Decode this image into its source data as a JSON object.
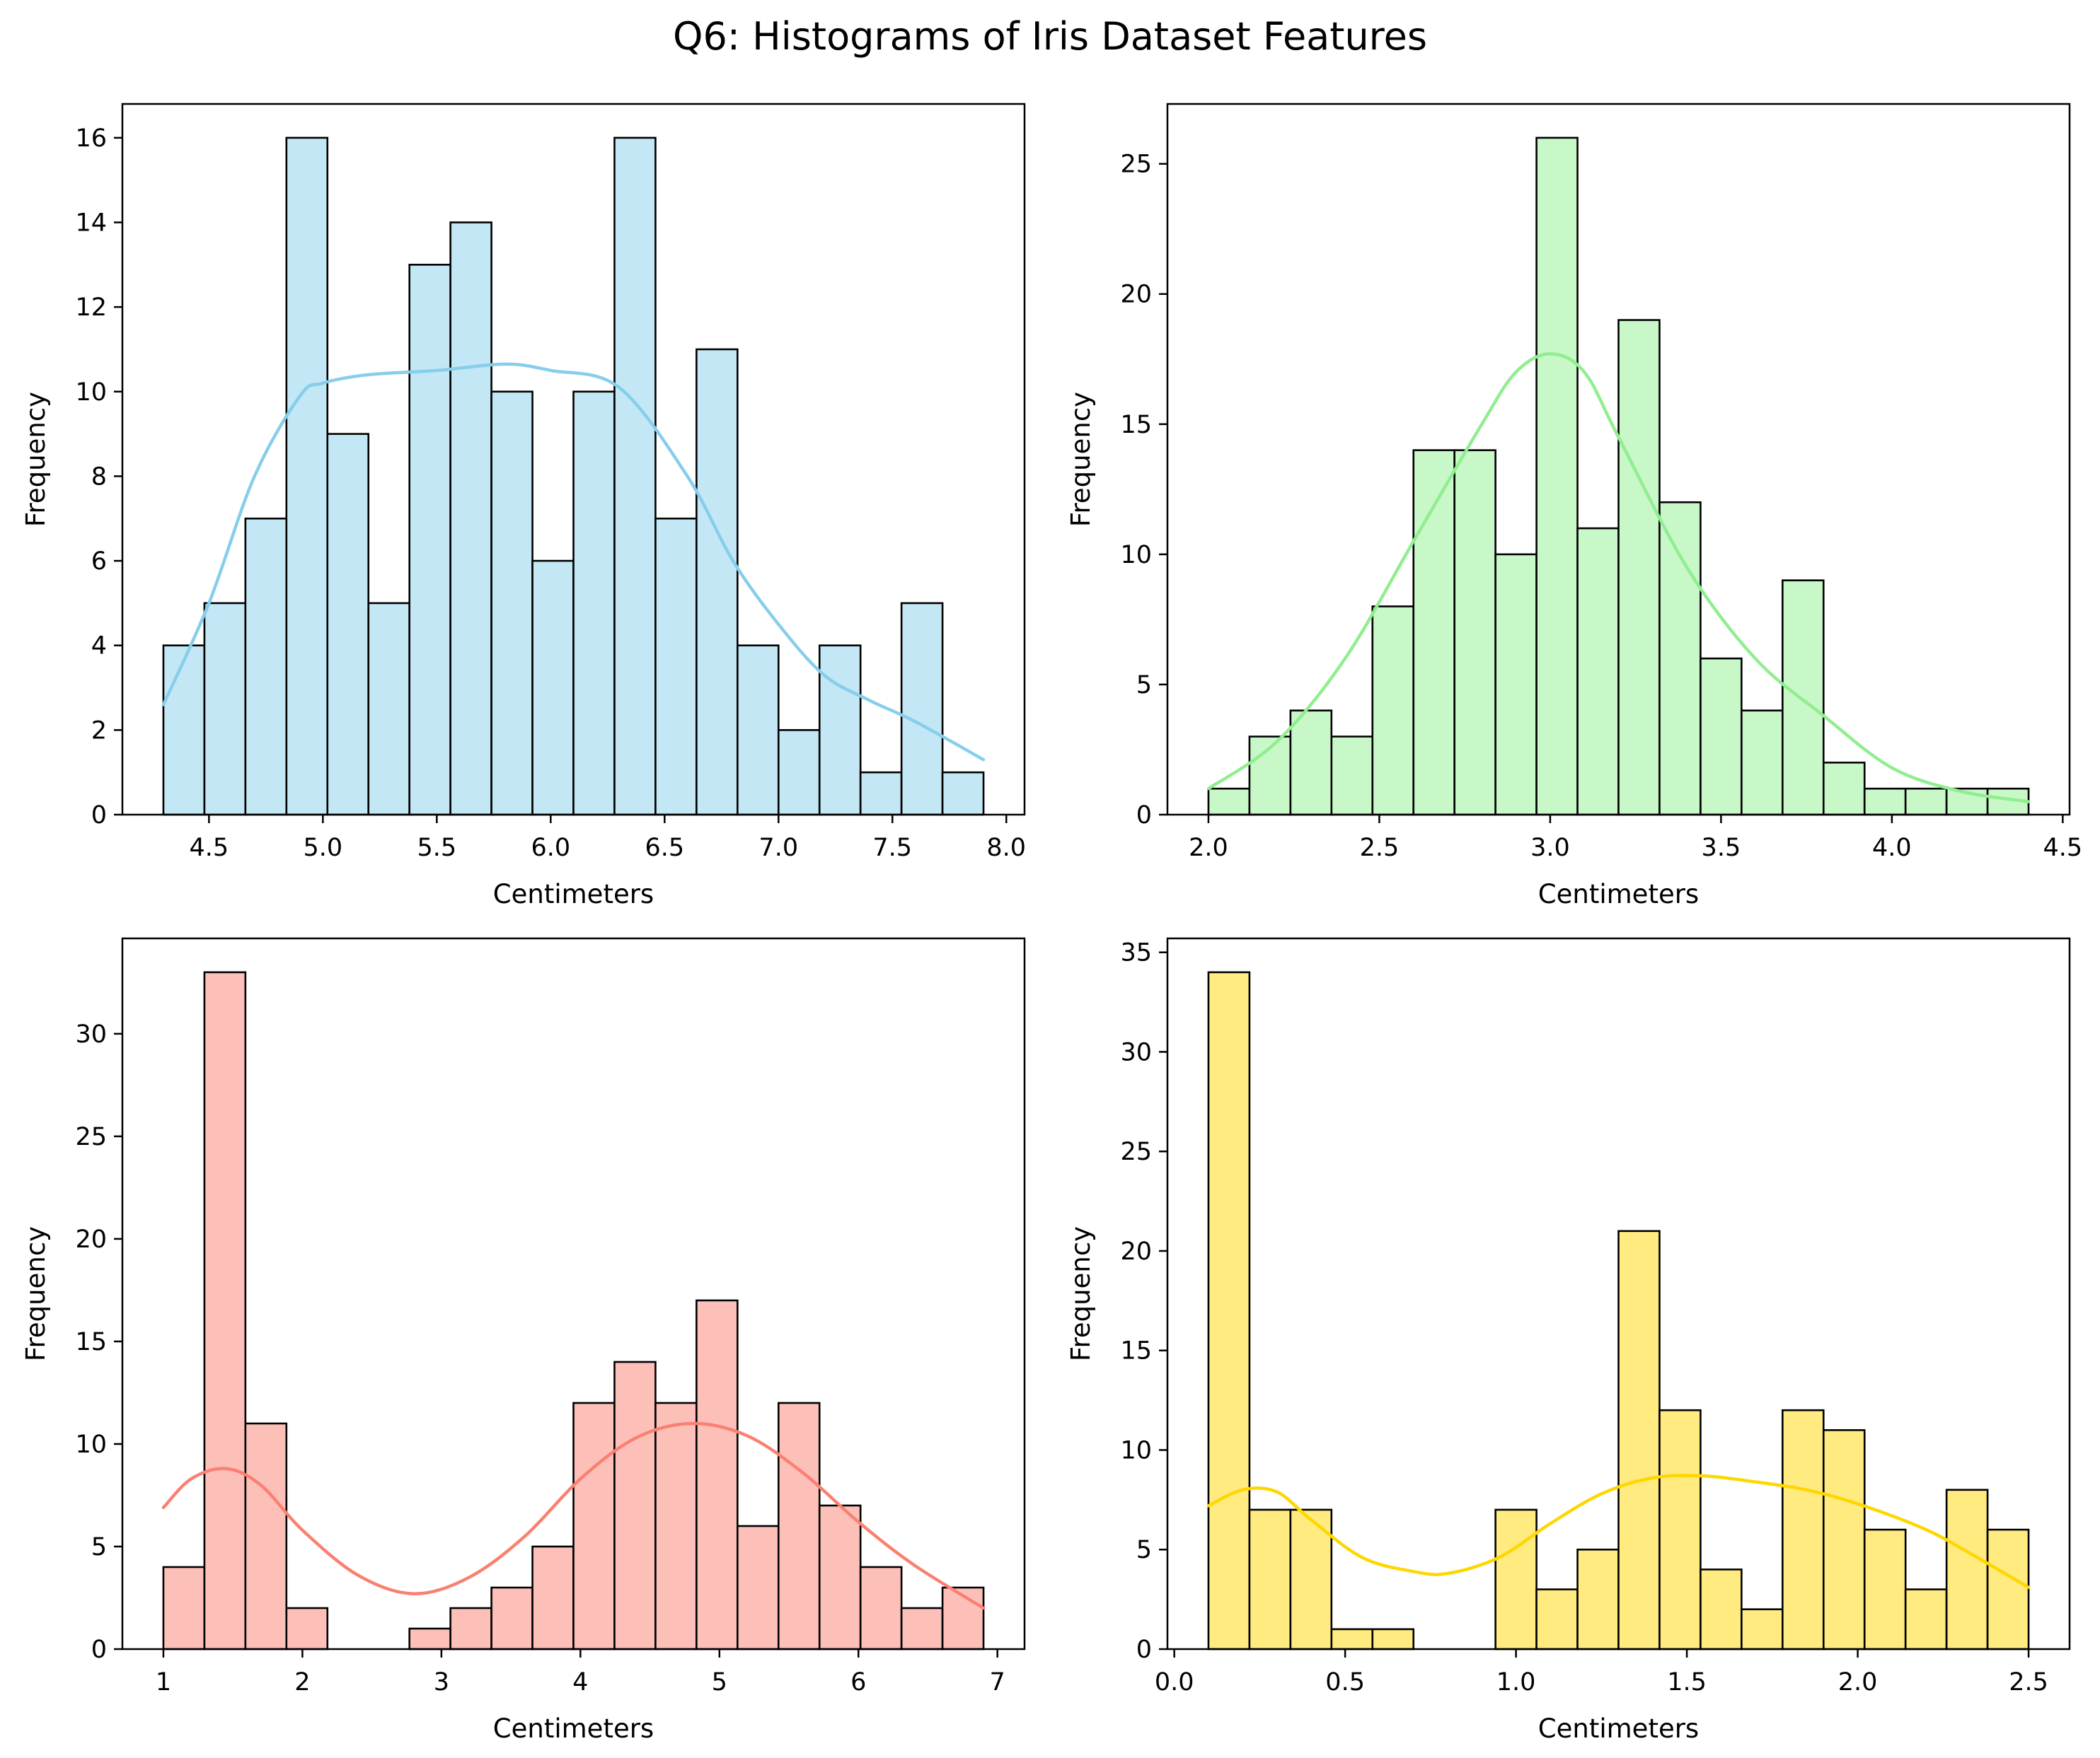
{
  "figure": {
    "title": "Q6: Histograms of Iris Dataset Features"
  },
  "chart_data": [
    {
      "type": "bar",
      "subtype": "histogram-with-kde",
      "xlabel": "Centimeters",
      "ylabel": "Frequency",
      "color": "#87CEEB",
      "bin_start": 4.3,
      "bin_width": 0.18,
      "values": [
        4,
        5,
        7,
        16,
        9,
        5,
        13,
        14,
        10,
        6,
        10,
        16,
        7,
        11,
        4,
        2,
        4,
        1,
        5,
        1
      ],
      "xlim": [
        4.12,
        8.08
      ],
      "ylim": [
        0,
        16.8
      ],
      "xticks": [
        4.5,
        5.0,
        5.5,
        6.0,
        6.5,
        7.0,
        7.5,
        8.0
      ],
      "xtick_labels": [
        "4.5",
        "5.0",
        "5.5",
        "6.0",
        "6.5",
        "7.0",
        "7.5",
        "8.0"
      ],
      "yticks": [
        0,
        2,
        4,
        6,
        8,
        10,
        12,
        14,
        16
      ],
      "kde": {
        "x": [
          4.3,
          4.5,
          4.7,
          4.9,
          5.0,
          5.2,
          5.5,
          5.8,
          6.0,
          6.3,
          6.6,
          6.8,
          7.0,
          7.2,
          7.4,
          7.6,
          7.9
        ],
        "y": [
          2.6,
          5.0,
          8.0,
          9.9,
          10.2,
          10.4,
          10.5,
          10.65,
          10.5,
          10.1,
          8.0,
          6.0,
          4.5,
          3.3,
          2.7,
          2.2,
          1.3
        ]
      }
    },
    {
      "type": "bar",
      "subtype": "histogram-with-kde",
      "xlabel": "Centimeters",
      "ylabel": "Frequency",
      "color": "#90EE90",
      "bin_start": 2.0,
      "bin_width": 0.12,
      "values": [
        1,
        3,
        4,
        3,
        8,
        14,
        14,
        10,
        26,
        11,
        19,
        12,
        6,
        4,
        9,
        2,
        1,
        1,
        1,
        1
      ],
      "xlim": [
        1.88,
        4.52
      ],
      "ylim": [
        0,
        27.3
      ],
      "xticks": [
        2.0,
        2.5,
        3.0,
        3.5,
        4.0,
        4.5
      ],
      "xtick_labels": [
        "2.0",
        "2.5",
        "3.0",
        "3.5",
        "4.0",
        "4.5"
      ],
      "yticks": [
        0,
        5,
        10,
        15,
        20,
        25
      ],
      "kde": {
        "x": [
          2.0,
          2.2,
          2.4,
          2.6,
          2.8,
          2.9,
          3.0,
          3.1,
          3.2,
          3.4,
          3.6,
          3.8,
          4.0,
          4.2,
          4.4
        ],
        "y": [
          1.0,
          2.8,
          6.0,
          10.5,
          15.0,
          17.0,
          17.7,
          17.0,
          14.5,
          9.5,
          6.0,
          3.8,
          1.8,
          0.9,
          0.5
        ]
      }
    },
    {
      "type": "bar",
      "subtype": "histogram-with-kde",
      "xlabel": "Centimeters",
      "ylabel": "Frequency",
      "color": "#FA8072",
      "bin_start": 1.0,
      "bin_width": 0.295,
      "values": [
        4,
        33,
        11,
        2,
        0,
        0,
        1,
        2,
        3,
        5,
        12,
        14,
        12,
        17,
        6,
        12,
        7,
        4,
        2,
        3
      ],
      "xlim": [
        0.705,
        7.195
      ],
      "ylim": [
        0,
        34.65
      ],
      "xticks": [
        1,
        2,
        3,
        4,
        5,
        6,
        7
      ],
      "xtick_labels": [
        "1",
        "2",
        "3",
        "4",
        "5",
        "6",
        "7"
      ],
      "yticks": [
        0,
        5,
        10,
        15,
        20,
        25,
        30
      ],
      "kde": {
        "x": [
          1.0,
          1.2,
          1.45,
          1.7,
          2.0,
          2.4,
          2.8,
          3.2,
          3.6,
          4.0,
          4.4,
          4.8,
          5.2,
          5.6,
          6.0,
          6.4,
          6.9
        ],
        "y": [
          6.9,
          8.3,
          8.8,
          8.0,
          5.8,
          3.6,
          2.7,
          3.5,
          5.5,
          8.3,
          10.3,
          11.0,
          10.4,
          8.6,
          6.2,
          4.1,
          2.0
        ]
      }
    },
    {
      "type": "bar",
      "subtype": "histogram-with-kde",
      "xlabel": "Centimeters",
      "ylabel": "Frequency",
      "color": "#FFD700",
      "bin_start": 0.1,
      "bin_width": 0.12,
      "values": [
        34,
        7,
        7,
        1,
        1,
        0,
        0,
        7,
        3,
        5,
        21,
        12,
        4,
        2,
        12,
        11,
        6,
        3,
        8,
        6
      ],
      "xlim": [
        -0.02,
        2.62
      ],
      "ylim": [
        0,
        35.7
      ],
      "xticks": [
        0.0,
        0.5,
        1.0,
        1.5,
        2.0,
        2.5
      ],
      "xtick_labels": [
        "0.0",
        "0.5",
        "1.0",
        "1.5",
        "2.0",
        "2.5"
      ],
      "yticks": [
        0,
        5,
        10,
        15,
        20,
        25,
        30,
        35
      ],
      "kde": {
        "x": [
          0.1,
          0.2,
          0.3,
          0.4,
          0.55,
          0.7,
          0.8,
          0.95,
          1.1,
          1.25,
          1.4,
          1.55,
          1.7,
          1.85,
          2.0,
          2.2,
          2.35,
          2.5
        ],
        "y": [
          7.2,
          8.0,
          7.9,
          6.5,
          4.6,
          3.9,
          3.8,
          4.6,
          6.3,
          7.8,
          8.6,
          8.7,
          8.4,
          8.0,
          7.3,
          6.0,
          4.6,
          3.1
        ]
      }
    }
  ]
}
